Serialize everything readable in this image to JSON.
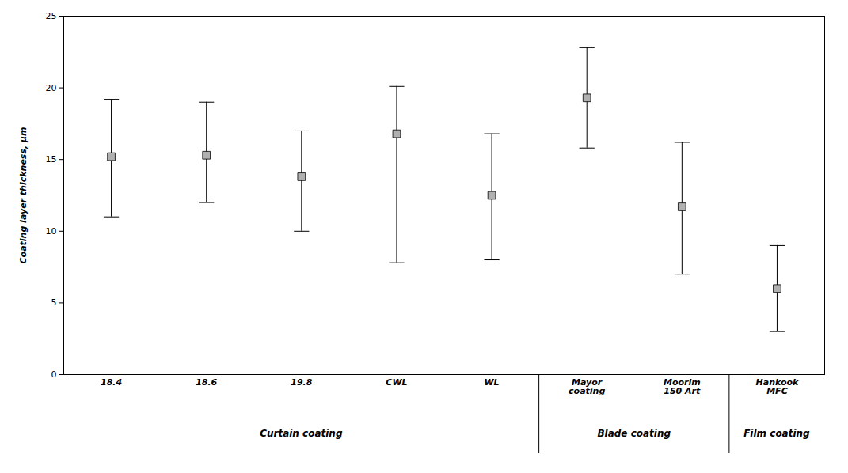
{
  "chart_data": {
    "type": "errorbar",
    "categories": [
      "18.4",
      "18.6",
      "19.8",
      "CWL",
      "WL",
      "Mayor\ncoating",
      "Moorim\n150 Art",
      "Hankook\nMFC"
    ],
    "groups": [
      "Curtain coating",
      "Curtain coating",
      "Curtain coating",
      "Curtain coating",
      "Curtain coating",
      "Blade coating",
      "Blade coating",
      "Film coating"
    ],
    "means": [
      15.2,
      15.3,
      13.8,
      16.8,
      12.5,
      19.3,
      11.7,
      6.0
    ],
    "upper_errors": [
      4.0,
      3.7,
      3.2,
      3.3,
      4.3,
      3.5,
      4.5,
      3.0
    ],
    "lower_errors": [
      4.2,
      3.3,
      3.8,
      9.0,
      4.5,
      3.5,
      4.7,
      3.0
    ],
    "ylabel": "Coating layer thickness, μm",
    "ylim": [
      0,
      25
    ],
    "yticks": [
      0,
      5,
      10,
      15,
      20,
      25
    ],
    "color": "#b0b0b0",
    "marker": "square"
  }
}
